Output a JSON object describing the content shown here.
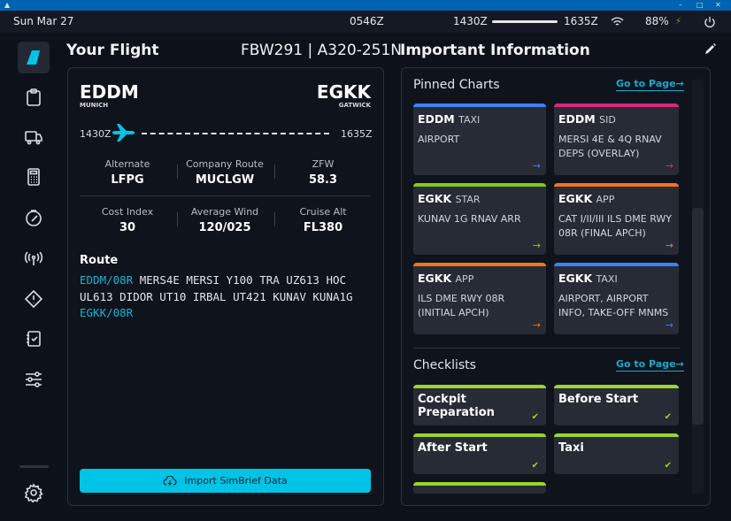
{
  "status": {
    "date": "Sun Mar 27",
    "utc": "0546Z",
    "dep_time": "1430Z",
    "arr_time": "1635Z",
    "flight_progress": 0,
    "battery": "88%"
  },
  "sidebar": {
    "items": [
      "home-icon",
      "clipboard-icon",
      "truck-icon",
      "calculator-icon",
      "compass-icon",
      "radio-tower-icon",
      "warning-icon",
      "checklist-icon",
      "sliders-icon",
      "settings-icon"
    ],
    "active": "home-icon"
  },
  "flight": {
    "title": "Your Flight",
    "ident": "FBW291 | A320-251N",
    "origin": {
      "icao": "EDDM",
      "name": "MUNICH",
      "time": "1430Z"
    },
    "dest": {
      "icao": "EGKK",
      "name": "GATWICK",
      "time": "1635Z"
    },
    "stats": [
      {
        "label": "Alternate",
        "value": "LFPG"
      },
      {
        "label": "Company Route",
        "value": "MUCLGW"
      },
      {
        "label": "ZFW",
        "value": "58.3"
      },
      {
        "label": "Cost Index",
        "value": "30"
      },
      {
        "label": "Average Wind",
        "value": "120/025"
      },
      {
        "label": "Cruise Alt",
        "value": "FL380"
      }
    ],
    "route_label": "Route",
    "route_start": "EDDM/08R",
    "route_mid": " MERS4E MERSI Y100 TRA UZ613 HOC UL613 DIDOR UT10 IRBAL UT421 KUNAV KUNA1G ",
    "route_end": "EGKK/08R",
    "import_label": "Import SimBrief Data"
  },
  "info": {
    "title": "Important Information",
    "pinned_title": "Pinned Charts",
    "goto": "Go to Page→",
    "checklists_title": "Checklists",
    "charts": [
      {
        "icao": "EDDM",
        "type": "TAXI",
        "desc": "AIRPORT",
        "color": "#3b82f6"
      },
      {
        "icao": "EDDM",
        "type": "SID",
        "desc": "MERSI 4E & 4Q RNAV DEPS (OVERLAY)",
        "color": "#db2777"
      },
      {
        "icao": "EGKK",
        "type": "STAR",
        "desc": "KUNAV 1G RNAV ARR",
        "color": "#84cc16"
      },
      {
        "icao": "EGKK",
        "type": "APP",
        "desc": "CAT I/II/III ILS DME RWY 08R (FINAL APCH)",
        "color": "#f97316"
      },
      {
        "icao": "EGKK",
        "type": "APP",
        "desc": "ILS DME RWY 08R (INITIAL APCH)",
        "color": "#f97316"
      },
      {
        "icao": "EGKK",
        "type": "TAXI",
        "desc": "AIRPORT, AIRPORT INFO, TAKE-OFF MNMS",
        "color": "#3b82f6"
      }
    ],
    "checklists": [
      "Cockpit Preparation",
      "Before Start",
      "After Start",
      "Taxi"
    ]
  },
  "colors": {
    "accent": "#00c4e6",
    "complete": "#9ad52a"
  }
}
